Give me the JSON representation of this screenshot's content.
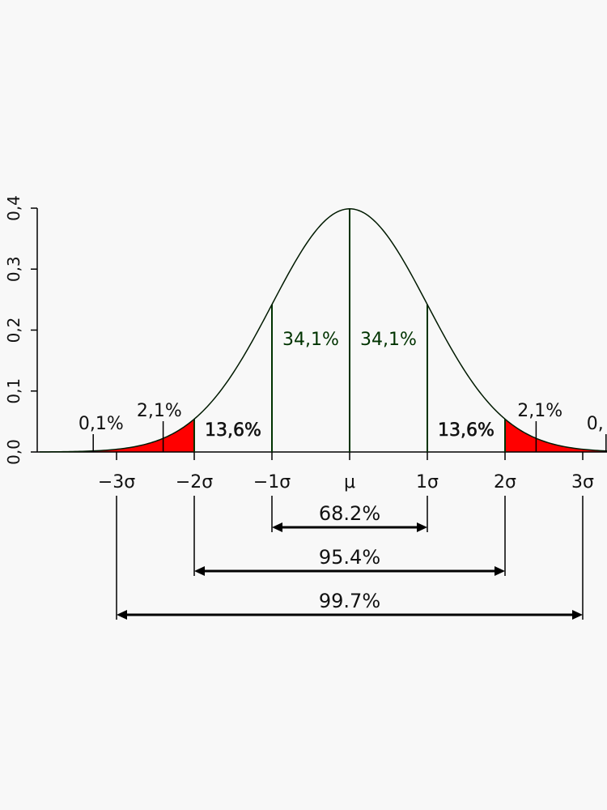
{
  "chart_data": {
    "type": "area",
    "distribution": "standard normal",
    "xlim": [
      -3.99,
      3.29
    ],
    "ylim": [
      0,
      0.4
    ],
    "y_ticks": [
      "0,0",
      "0,1",
      "0,2",
      "0,3",
      "0,4"
    ],
    "y_tick_values": [
      0,
      0.1,
      0.2,
      0.3,
      0.4
    ],
    "x_ticks": [
      "−3σ",
      "−2σ",
      "−1σ",
      "μ",
      "1σ",
      "2σ",
      "3σ"
    ],
    "x_tick_values": [
      -3,
      -2,
      -1,
      0,
      1,
      2,
      3
    ],
    "boundaries": [
      -2,
      -1,
      0,
      1,
      2
    ],
    "regions": [
      {
        "label": "34,1%",
        "from": -1,
        "to": 0,
        "color": "#ffffff",
        "label_color": "#003300"
      },
      {
        "label": "34,1%",
        "from": 0,
        "to": 1,
        "color": "#ffffff",
        "label_color": "#003300"
      },
      {
        "label": "13,6%",
        "from": -2,
        "to": -1,
        "color": "#ffffff",
        "label_color": "#fffff0"
      },
      {
        "label": "13,6%",
        "from": 1,
        "to": 2,
        "color": "#ffffff",
        "label_color": "#fffff0"
      },
      {
        "label": "2,1%",
        "from": -3,
        "to": -2,
        "color": "#ff0000",
        "label_color": "#111111"
      },
      {
        "label": "2,1%",
        "from": 2,
        "to": 3,
        "color": "#ff0000",
        "label_color": "#111111"
      },
      {
        "label": "0,1%",
        "from": -4,
        "to": -3,
        "color": "#ff0000",
        "label_color": "#111111"
      },
      {
        "label": "0,",
        "from": 3,
        "to": 4,
        "color": "#ff0000",
        "label_color": "#111111"
      }
    ],
    "ranges": [
      {
        "label": "68.2%",
        "from": -1,
        "to": 1
      },
      {
        "label": "95.4%",
        "from": -2,
        "to": 2
      },
      {
        "label": "99.7%",
        "from": -3,
        "to": 3
      }
    ],
    "colors": {
      "curve": "#003300",
      "tail": "#ff0000",
      "axis": "#000000"
    }
  }
}
